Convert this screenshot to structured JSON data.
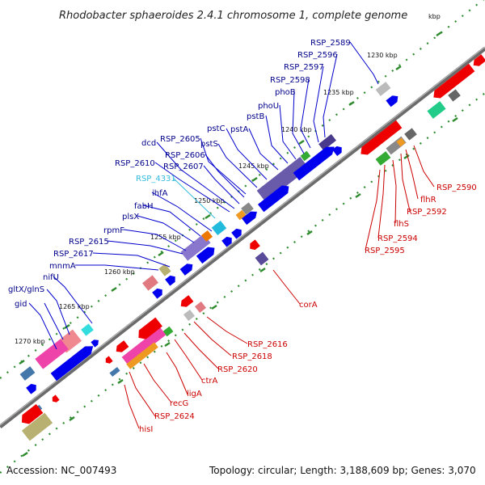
{
  "title": "Rhodobacter sphaeroides 2.4.1 chromosome 1, complete genome",
  "footer": {
    "accession": "Accession: NC_007493",
    "summary": "Topology: circular; Length: 3,188,609 bp; Genes: 3,070"
  },
  "colors": {
    "forward_strand_label": "#00008B",
    "reverse_strand_label": "#CC0000",
    "highlight_label": "#33BBDD",
    "backbone": "#7a7a7a",
    "tick": "#2e8b2e"
  },
  "kbp_labels": [
    "kbp",
    "1230 kbp",
    "1235 kbp",
    "1240 kbp",
    "1245 kbp",
    "1250 kbp",
    "1255 kbp",
    "1260 kbp",
    "1265 kbp",
    "1270 kbp"
  ],
  "forward_labels": [
    "RSP_2589",
    "RSP_2596",
    "RSP_2597",
    "RSP_2598",
    "phoB",
    "phoU",
    "pstB",
    "pstA",
    "pstC",
    "pstS",
    "RSP_2605",
    "dcd",
    "RSP_2606",
    "RSP_2607",
    "RSP_2610",
    "RSP_4331",
    "ihfA",
    "fabH",
    "plsX",
    "rpmF",
    "RSP_2615",
    "RSP_2617",
    "mnmA",
    "nifU",
    "gltX/glnS",
    "gid"
  ],
  "reverse_labels": [
    "RSP_2590",
    "flhR",
    "RSP_2592",
    "flhS",
    "RSP_2594",
    "RSP_2595",
    "corA",
    "RSP_2616",
    "RSP_2618",
    "RSP_2620",
    "ctrA",
    "ligA",
    "recG",
    "RSP_2624",
    "hisI"
  ]
}
